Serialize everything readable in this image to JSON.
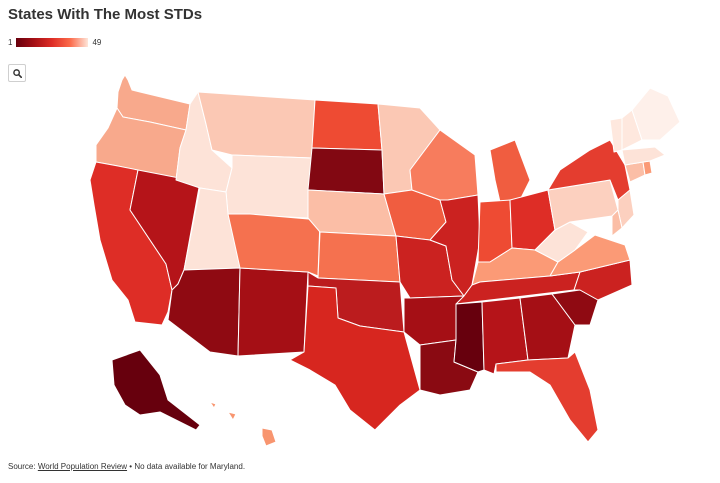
{
  "title": "States With The Most STDs",
  "legend": {
    "min": "1",
    "max": "49",
    "color_min": "#67000d",
    "color_max": "#fee5d9"
  },
  "zoom": {
    "icon": "search-icon"
  },
  "source": {
    "prefix": "Source:",
    "link": "World Population Review",
    "separator": "•",
    "note": "No data available for Maryland."
  },
  "states": [
    {
      "name": "Washington",
      "color": "#f8a98c"
    },
    {
      "name": "Oregon",
      "color": "#f8a98c"
    },
    {
      "name": "California",
      "color": "#de2d26"
    },
    {
      "name": "Nevada",
      "color": "#b51419"
    },
    {
      "name": "Idaho",
      "color": "#fde3d8"
    },
    {
      "name": "Montana",
      "color": "#fbc8b4"
    },
    {
      "name": "Wyoming",
      "color": "#fde3d8"
    },
    {
      "name": "Utah",
      "color": "#fde3d8"
    },
    {
      "name": "Arizona",
      "color": "#8f0a12"
    },
    {
      "name": "New Mexico",
      "color": "#a50f15"
    },
    {
      "name": "Colorado",
      "color": "#f5714f"
    },
    {
      "name": "North Dakota",
      "color": "#ee4b33"
    },
    {
      "name": "South Dakota",
      "color": "#820812"
    },
    {
      "name": "Nebraska",
      "color": "#fbbea6"
    },
    {
      "name": "Kansas",
      "color": "#f5714f"
    },
    {
      "name": "Oklahoma",
      "color": "#bb1c1e"
    },
    {
      "name": "Texas",
      "color": "#d7261f"
    },
    {
      "name": "Minnesota",
      "color": "#fbc8b4"
    },
    {
      "name": "Iowa",
      "color": "#f05d40"
    },
    {
      "name": "Missouri",
      "color": "#cb2220"
    },
    {
      "name": "Arkansas",
      "color": "#a50f15"
    },
    {
      "name": "Louisiana",
      "color": "#8a0a12"
    },
    {
      "name": "Wisconsin",
      "color": "#f77c5d"
    },
    {
      "name": "Illinois",
      "color": "#cb2220"
    },
    {
      "name": "Michigan",
      "color": "#f05d40"
    },
    {
      "name": "Indiana",
      "color": "#ee4b33"
    },
    {
      "name": "Ohio",
      "color": "#de2d26"
    },
    {
      "name": "Kentucky",
      "color": "#fb9a76"
    },
    {
      "name": "Tennessee",
      "color": "#cb2220"
    },
    {
      "name": "Mississippi",
      "color": "#67000d"
    },
    {
      "name": "Alabama",
      "color": "#b51419"
    },
    {
      "name": "Georgia",
      "color": "#a50f15"
    },
    {
      "name": "Florida",
      "color": "#e43d2f"
    },
    {
      "name": "South Carolina",
      "color": "#8f0a12"
    },
    {
      "name": "North Carolina",
      "color": "#cb2220"
    },
    {
      "name": "Virginia",
      "color": "#fb9a76"
    },
    {
      "name": "West Virginia",
      "color": "#fde3d8"
    },
    {
      "name": "Maryland",
      "color": "#ffffff"
    },
    {
      "name": "Pennsylvania",
      "color": "#fcd0bf"
    },
    {
      "name": "New York",
      "color": "#e43d2f"
    },
    {
      "name": "New Jersey",
      "color": "#fcd0bf"
    },
    {
      "name": "Delaware",
      "color": "#fbbea6"
    },
    {
      "name": "Connecticut",
      "color": "#fbbea6"
    },
    {
      "name": "Rhode Island",
      "color": "#fb9a76"
    },
    {
      "name": "Massachusetts",
      "color": "#fde3d8"
    },
    {
      "name": "Vermont",
      "color": "#fee8de"
    },
    {
      "name": "New Hampshire",
      "color": "#fee8de"
    },
    {
      "name": "Maine",
      "color": "#fef0ea"
    },
    {
      "name": "Alaska",
      "color": "#67000d"
    },
    {
      "name": "Hawaii",
      "color": "#f8956f"
    }
  ]
}
